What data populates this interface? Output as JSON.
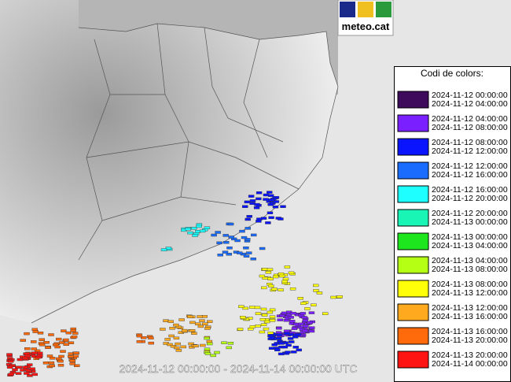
{
  "logo": {
    "text": "meteo.cat"
  },
  "legend": {
    "title": "Codi de colors:",
    "entries": [
      {
        "color": "#3d0a5c",
        "from": "2024-11-12 00:00:00",
        "to": "2024-11-12 04:00:00"
      },
      {
        "color": "#7a1fff",
        "from": "2024-11-12 04:00:00",
        "to": "2024-11-12 08:00:00"
      },
      {
        "color": "#0a14ff",
        "from": "2024-11-12 08:00:00",
        "to": "2024-11-12 12:00:00"
      },
      {
        "color": "#1a6cff",
        "from": "2024-11-12 12:00:00",
        "to": "2024-11-12 16:00:00"
      },
      {
        "color": "#1effff",
        "from": "2024-11-12 16:00:00",
        "to": "2024-11-12 20:00:00"
      },
      {
        "color": "#19f5b4",
        "from": "2024-11-12 20:00:00",
        "to": "2024-11-13 00:00:00"
      },
      {
        "color": "#1ee61e",
        "from": "2024-11-13 00:00:00",
        "to": "2024-11-13 04:00:00"
      },
      {
        "color": "#b4ff14",
        "from": "2024-11-13 04:00:00",
        "to": "2024-11-13 08:00:00"
      },
      {
        "color": "#ffff0a",
        "from": "2024-11-13 08:00:00",
        "to": "2024-11-13 12:00:00"
      },
      {
        "color": "#ffaa1e",
        "from": "2024-11-13 12:00:00",
        "to": "2024-11-13 16:00:00"
      },
      {
        "color": "#ff6a0a",
        "from": "2024-11-13 16:00:00",
        "to": "2024-11-13 20:00:00"
      },
      {
        "color": "#ff1414",
        "from": "2024-11-13 20:00:00",
        "to": "2024-11-14 00:00:00"
      }
    ]
  },
  "caption": "2024-11-12 00:00:00 - 2024-11-14 00:00:00 UTC"
}
